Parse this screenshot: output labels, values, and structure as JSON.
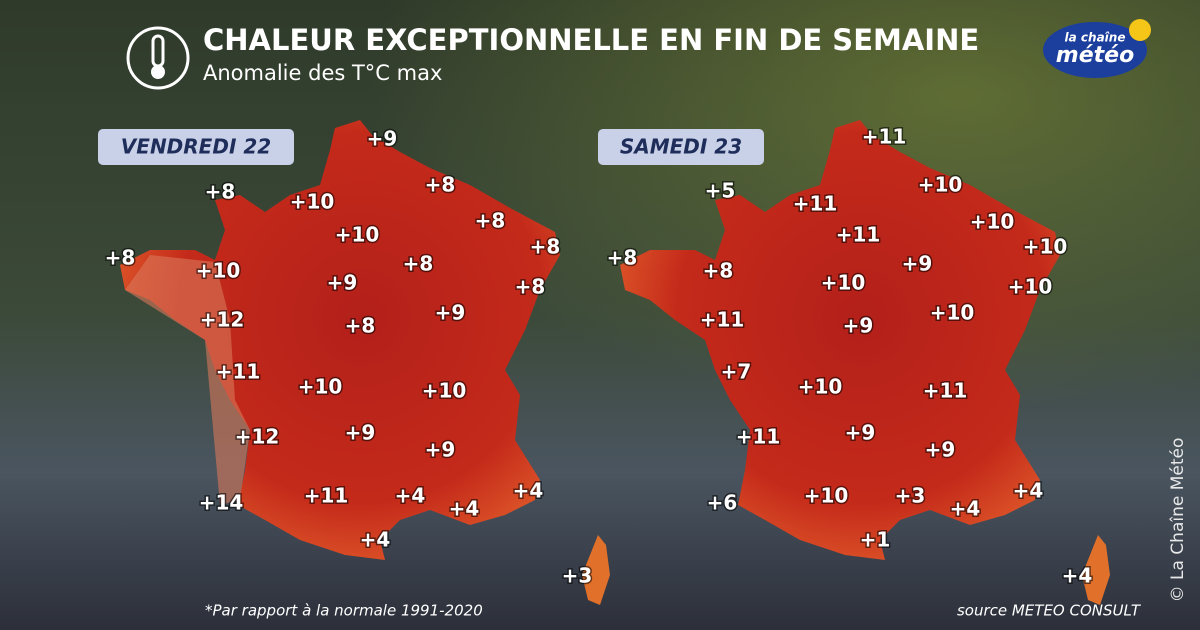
{
  "header": {
    "title": "CHALEUR EXCEPTIONNELLE EN FIN DE SEMAINE",
    "subtitle": "Anomalie des T°C max",
    "logo_top": "la chaîne",
    "logo_main": "météo"
  },
  "maps": [
    {
      "day": "VENDREDI 22",
      "labels": [
        "+9",
        "+8",
        "+10",
        "+8",
        "+8",
        "+10",
        "+8",
        "+8",
        "+10",
        "+8",
        "+9",
        "+8",
        "+12",
        "+9",
        "+8",
        "+11",
        "+10",
        "+10",
        "+12",
        "+9",
        "+9",
        "+11",
        "+4",
        "+4",
        "+14",
        "+4",
        "+4",
        "+3"
      ]
    },
    {
      "day": "SAMEDI 23",
      "labels": [
        "+11",
        "+5",
        "+10",
        "+11",
        "+11",
        "+10",
        "+10",
        "+8",
        "+8",
        "+9",
        "+10",
        "+10",
        "+11",
        "+10",
        "+9",
        "+7",
        "+10",
        "+11",
        "+11",
        "+9",
        "+9",
        "+10",
        "+3",
        "+4",
        "+6",
        "+4",
        "+1",
        "+4"
      ]
    }
  ],
  "footer": {
    "note": "*Par rapport à la normale 1991-2020",
    "source": "source METEO CONSULT",
    "copyright": "© La Chaîne Météo"
  }
}
